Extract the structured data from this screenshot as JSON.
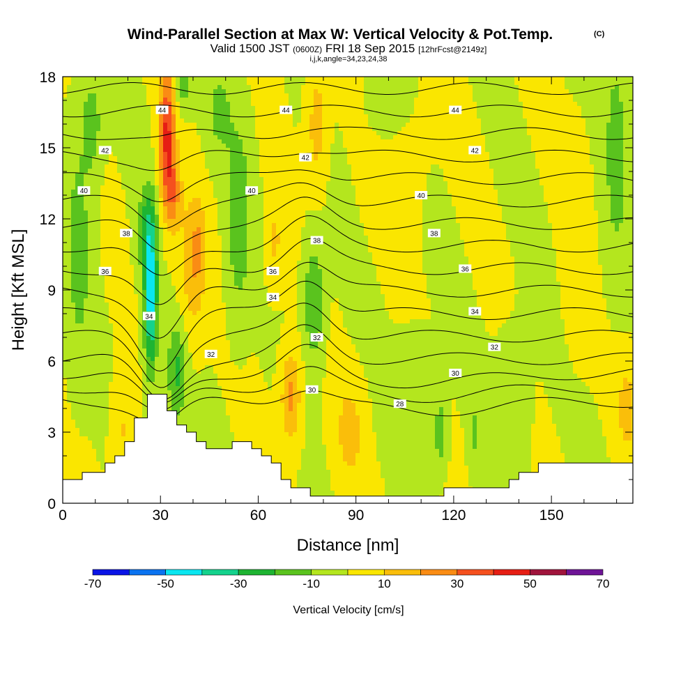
{
  "chart_data": {
    "type": "heatmap",
    "title": "Wind-Parallel Section at Max W: Vertical Velocity & Pot.Temp.",
    "title_mark": "(C)",
    "subtitle": {
      "main1": "Valid 1500 JST",
      "utc": "(0600Z)",
      "main2": "FRI 18 Sep 2015",
      "forecast": "[12hrFcst@2149z]"
    },
    "subsubtitle": "i,j,k,angle=34,23,24,38",
    "xlabel": "Distance [nm]",
    "ylabel": "Height [Kft MSL]",
    "xlim": [
      0,
      175
    ],
    "ylim": [
      0,
      18
    ],
    "x_ticks": [
      0,
      30,
      60,
      90,
      120,
      150
    ],
    "y_ticks": [
      0,
      3,
      6,
      9,
      12,
      15,
      18
    ],
    "grid": false,
    "colorbar": {
      "label": "Vertical Velocity [cm/s]",
      "range": [
        -70,
        70
      ],
      "tick_labels": [
        -70,
        -50,
        -30,
        -10,
        10,
        30,
        50,
        70
      ],
      "bins": [
        {
          "from": -70,
          "to": -60,
          "color": "#0a14e6"
        },
        {
          "from": -60,
          "to": -50,
          "color": "#0a73f0"
        },
        {
          "from": -50,
          "to": -40,
          "color": "#0ae6f0"
        },
        {
          "from": -40,
          "to": -30,
          "color": "#14d28c"
        },
        {
          "from": -30,
          "to": -20,
          "color": "#1eb432"
        },
        {
          "from": -20,
          "to": -10,
          "color": "#5ac31e"
        },
        {
          "from": -10,
          "to": 0,
          "color": "#b4e61e"
        },
        {
          "from": 0,
          "to": 10,
          "color": "#fae600"
        },
        {
          "from": 10,
          "to": 20,
          "color": "#fabe0a"
        },
        {
          "from": 20,
          "to": 30,
          "color": "#fa8c14"
        },
        {
          "from": 30,
          "to": 40,
          "color": "#f5501e"
        },
        {
          "from": 40,
          "to": 50,
          "color": "#e61e14"
        },
        {
          "from": 50,
          "to": 60,
          "color": "#a0143c"
        },
        {
          "from": 60,
          "to": 70,
          "color": "#6e1496"
        }
      ]
    },
    "vertical_velocity_features": [
      {
        "x": 5,
        "y": 11,
        "sx": 4,
        "sy": 5,
        "w": -14
      },
      {
        "x": 27,
        "y": 8.5,
        "sx": 2,
        "sy": 3,
        "w": -45
      },
      {
        "x": 26,
        "y": 11.5,
        "sx": 3,
        "sy": 2,
        "w": -22
      },
      {
        "x": 32,
        "y": 15.5,
        "sx": 2.5,
        "sy": 3,
        "w": 42
      },
      {
        "x": 34,
        "y": 13,
        "sx": 2.5,
        "sy": 1.5,
        "w": 20
      },
      {
        "x": 40,
        "y": 10,
        "sx": 4,
        "sy": 3,
        "w": 18
      },
      {
        "x": 42,
        "y": 11,
        "sx": 2,
        "sy": 1.5,
        "w": 10
      },
      {
        "x": 35,
        "y": 5.5,
        "sx": 3,
        "sy": 2,
        "w": -22
      },
      {
        "x": 37,
        "y": 17.5,
        "sx": 3,
        "sy": 1,
        "w": -14
      },
      {
        "x": 54,
        "y": 12,
        "sx": 3.5,
        "sy": 4,
        "w": -18
      },
      {
        "x": 48,
        "y": 16.5,
        "sx": 4,
        "sy": 2,
        "w": -12
      },
      {
        "x": 65,
        "y": 11,
        "sx": 2.5,
        "sy": 2,
        "w": 12
      },
      {
        "x": 77,
        "y": 8.5,
        "sx": 3,
        "sy": 2.5,
        "w": -22
      },
      {
        "x": 78,
        "y": 16,
        "sx": 3,
        "sy": 2.5,
        "w": 16
      },
      {
        "x": 70,
        "y": 4.5,
        "sx": 3,
        "sy": 2,
        "w": 24
      },
      {
        "x": 88,
        "y": 3,
        "sx": 4,
        "sy": 2,
        "w": 15
      },
      {
        "x": 100,
        "y": 17,
        "sx": 6,
        "sy": 2,
        "w": -10
      },
      {
        "x": 103,
        "y": 15,
        "sx": 8,
        "sy": 3,
        "w": 6
      },
      {
        "x": 116,
        "y": 3,
        "sx": 2,
        "sy": 1.5,
        "w": -18
      },
      {
        "x": 126,
        "y": 3,
        "sx": 1.5,
        "sy": 1.5,
        "w": -12
      },
      {
        "x": 170,
        "y": 15,
        "sx": 4,
        "sy": 5,
        "w": -14
      },
      {
        "x": 158,
        "y": 11,
        "sx": 4,
        "sy": 4,
        "w": 8
      },
      {
        "x": 108,
        "y": 5,
        "sx": 5,
        "sy": 2,
        "w": -10
      },
      {
        "x": 138,
        "y": 4,
        "sx": 5,
        "sy": 3,
        "w": -8
      },
      {
        "x": 173,
        "y": 4,
        "sx": 3,
        "sy": 2,
        "w": 14
      },
      {
        "x": 18,
        "y": 3,
        "sx": 3,
        "sy": 2,
        "w": 12
      },
      {
        "x": 9,
        "y": 16,
        "sx": 3,
        "sy": 2,
        "w": -16
      }
    ],
    "terrain": [
      [
        0,
        1.0
      ],
      [
        6,
        1.0
      ],
      [
        6,
        1.3
      ],
      [
        13,
        1.3
      ],
      [
        13,
        1.7
      ],
      [
        16,
        1.7
      ],
      [
        16,
        2.0
      ],
      [
        19,
        2.0
      ],
      [
        19,
        2.6
      ],
      [
        22,
        2.6
      ],
      [
        22,
        3.6
      ],
      [
        26,
        3.6
      ],
      [
        26,
        4.6
      ],
      [
        32,
        4.6
      ],
      [
        32,
        3.9
      ],
      [
        35,
        3.9
      ],
      [
        35,
        3.3
      ],
      [
        38,
        3.3
      ],
      [
        38,
        3.0
      ],
      [
        41,
        3.0
      ],
      [
        41,
        2.6
      ],
      [
        44,
        2.6
      ],
      [
        44,
        2.3
      ],
      [
        52,
        2.3
      ],
      [
        52,
        2.6
      ],
      [
        58,
        2.6
      ],
      [
        58,
        2.3
      ],
      [
        61,
        2.3
      ],
      [
        61,
        2.0
      ],
      [
        64,
        2.0
      ],
      [
        64,
        1.7
      ],
      [
        67,
        1.7
      ],
      [
        67,
        1.0
      ],
      [
        70,
        1.0
      ],
      [
        70,
        0.65
      ],
      [
        76,
        0.65
      ],
      [
        76,
        0.3
      ],
      [
        117,
        0.3
      ],
      [
        117,
        0.65
      ],
      [
        137,
        0.65
      ],
      [
        137,
        1.0
      ],
      [
        140,
        1.0
      ],
      [
        140,
        1.3
      ],
      [
        146,
        1.3
      ],
      [
        146,
        1.7
      ],
      [
        175,
        1.7
      ],
      [
        175,
        0
      ],
      [
        0,
        0
      ]
    ],
    "isentropes": {
      "levels": [
        28,
        29,
        30,
        31,
        32,
        33,
        34,
        35,
        36,
        37,
        38,
        39,
        40,
        41,
        42,
        43,
        44,
        45,
        46,
        47,
        48
      ],
      "labeled_values": [
        28,
        30,
        32,
        34,
        36,
        38,
        40,
        42,
        44
      ]
    },
    "contour_labels": [
      {
        "x": 30.5,
        "y": 16.6,
        "value": "44"
      },
      {
        "x": 68.5,
        "y": 16.6,
        "value": "44"
      },
      {
        "x": 120.5,
        "y": 16.6,
        "value": "44"
      },
      {
        "x": 13,
        "y": 14.9,
        "value": "42"
      },
      {
        "x": 74.5,
        "y": 14.6,
        "value": "42"
      },
      {
        "x": 126.5,
        "y": 14.9,
        "value": "42"
      },
      {
        "x": 6.5,
        "y": 13.2,
        "value": "40"
      },
      {
        "x": 58,
        "y": 13.2,
        "value": "40"
      },
      {
        "x": 110,
        "y": 13.0,
        "value": "40"
      },
      {
        "x": 19.5,
        "y": 11.4,
        "value": "38"
      },
      {
        "x": 78,
        "y": 11.1,
        "value": "38"
      },
      {
        "x": 114,
        "y": 11.4,
        "value": "38"
      },
      {
        "x": 13,
        "y": 9.8,
        "value": "36"
      },
      {
        "x": 64.5,
        "y": 9.8,
        "value": "36"
      },
      {
        "x": 123.5,
        "y": 9.9,
        "value": "36"
      },
      {
        "x": 26.5,
        "y": 7.9,
        "value": "34"
      },
      {
        "x": 64.5,
        "y": 8.7,
        "value": "34"
      },
      {
        "x": 126.5,
        "y": 8.1,
        "value": "34"
      },
      {
        "x": 45.5,
        "y": 6.3,
        "value": "32"
      },
      {
        "x": 78,
        "y": 7.0,
        "value": "32"
      },
      {
        "x": 132.5,
        "y": 6.6,
        "value": "32"
      },
      {
        "x": 76.5,
        "y": 4.8,
        "value": "30"
      },
      {
        "x": 120.5,
        "y": 5.5,
        "value": "30"
      },
      {
        "x": 103.5,
        "y": 4.2,
        "value": "28"
      }
    ]
  }
}
